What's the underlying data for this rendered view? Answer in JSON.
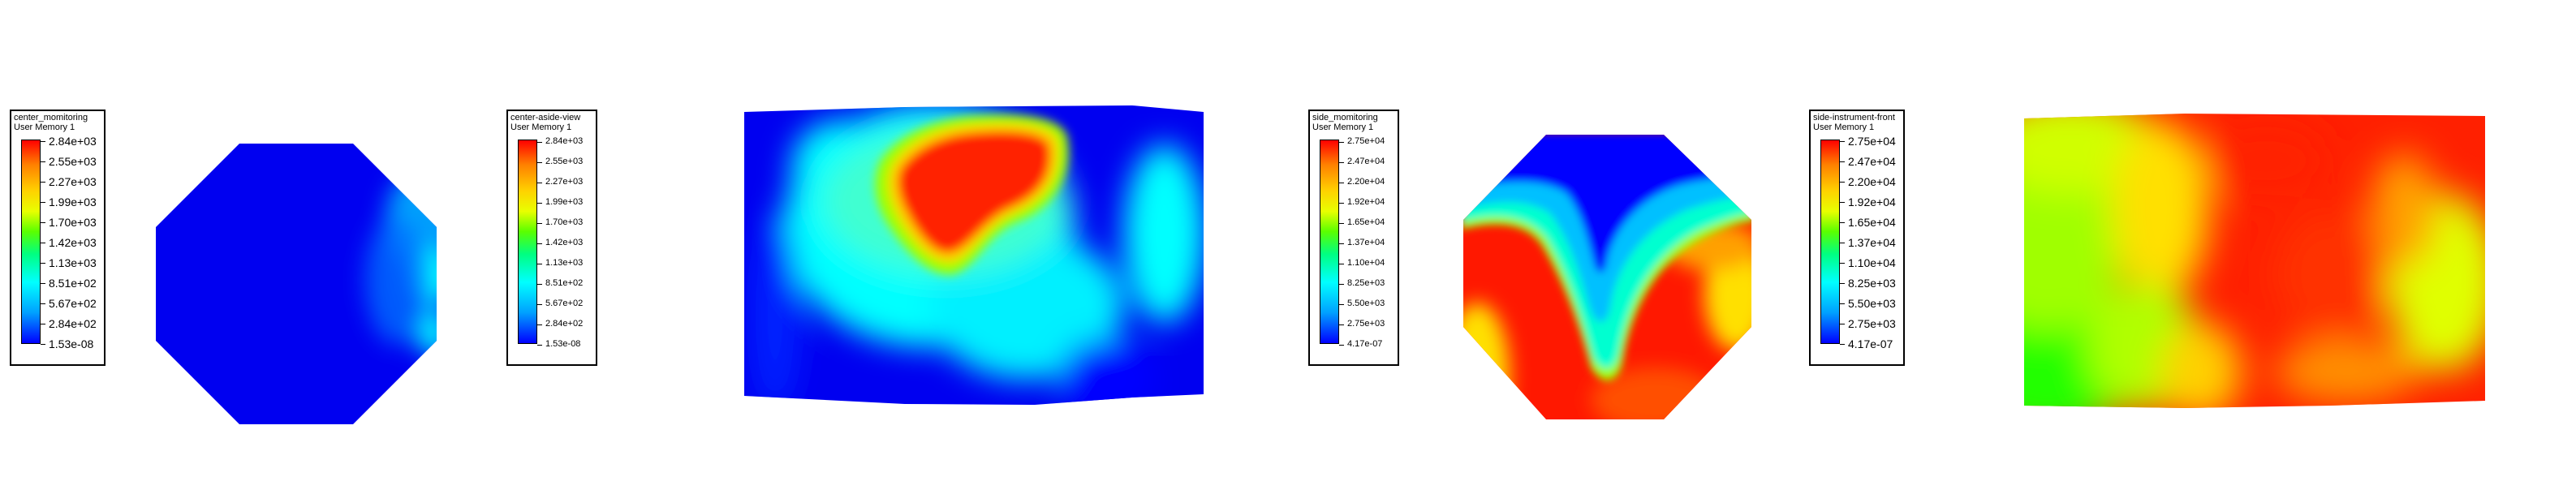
{
  "legends": [
    {
      "title": "center_momitoring",
      "subtitle": "User Memory 1",
      "small": false,
      "labels": [
        "2.84e+03",
        "2.55e+03",
        "2.27e+03",
        "1.99e+03",
        "1.70e+03",
        "1.42e+03",
        "1.13e+03",
        "8.51e+02",
        "5.67e+02",
        "2.84e+02",
        "1.53e-08"
      ]
    },
    {
      "title": "center-aside-view",
      "subtitle": "User Memory 1",
      "small": true,
      "labels": [
        "2.84e+03",
        "2.55e+03",
        "2.27e+03",
        "1.99e+03",
        "1.70e+03",
        "1.42e+03",
        "1.13e+03",
        "8.51e+02",
        "5.67e+02",
        "2.84e+02",
        "1.53e-08"
      ]
    },
    {
      "title": "side_momitoring",
      "subtitle": "User Memory 1",
      "small": true,
      "labels": [
        "2.75e+04",
        "2.47e+04",
        "2.20e+04",
        "1.92e+04",
        "1.65e+04",
        "1.37e+04",
        "1.10e+04",
        "8.25e+03",
        "5.50e+03",
        "2.75e+03",
        "4.17e-07"
      ]
    },
    {
      "title": "side-instrument-front",
      "subtitle": "User Memory 1",
      "small": false,
      "labels": [
        "2.75e+04",
        "2.47e+04",
        "2.20e+04",
        "1.92e+04",
        "1.65e+04",
        "1.37e+04",
        "1.10e+04",
        "8.25e+03",
        "5.50e+03",
        "2.75e+03",
        "4.17e-07"
      ]
    }
  ],
  "colors": {
    "low": "#0000ff",
    "cyan": "#00ffff",
    "green": "#00ff00",
    "yellow": "#ffff00",
    "high": "#ff0000"
  }
}
